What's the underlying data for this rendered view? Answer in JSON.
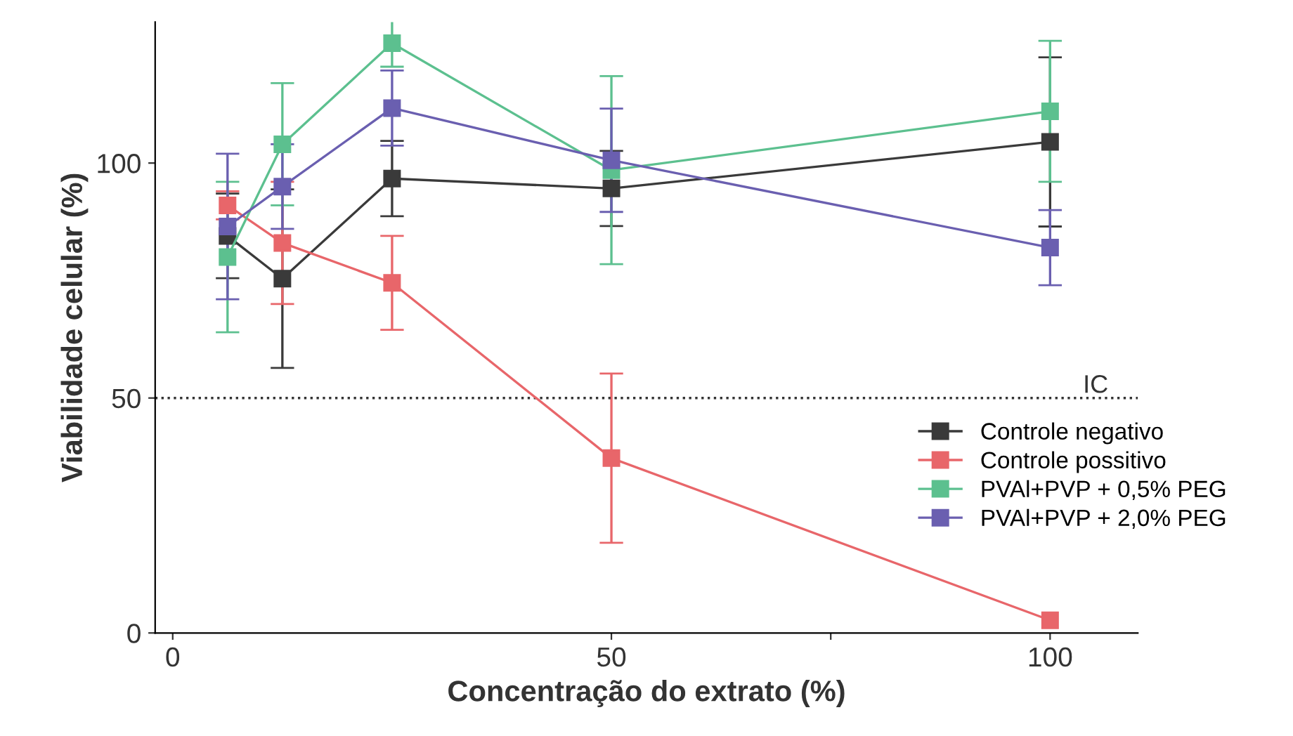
{
  "chart_data": {
    "type": "line",
    "xlabel": "Concentração do extrato (%)",
    "ylabel": "Viabilidade celular (%)",
    "x": [
      6.25,
      12.5,
      25,
      50,
      100
    ],
    "series": [
      {
        "name": "Controle negativo",
        "color": "#3a3a3a",
        "values": [
          84.5,
          75.4,
          96.7,
          94.6,
          104.5
        ],
        "errors": [
          9,
          19,
          8,
          8,
          18
        ]
      },
      {
        "name": "Controle possitivo",
        "color": "#e8666a",
        "values": [
          91,
          83,
          74.5,
          37.2,
          2.7
        ],
        "errors": [
          3,
          13,
          10,
          18,
          null
        ]
      },
      {
        "name": "PVAl+PVP + 0,5% PEG",
        "color": "#5cc08f",
        "values": [
          80,
          104,
          125.5,
          98.5,
          111
        ],
        "errors": [
          16,
          13,
          5,
          20,
          15
        ]
      },
      {
        "name": "PVAl+PVP + 2,0% PEG",
        "color": "#6a5fb0",
        "values": [
          86.5,
          95,
          111.7,
          100.6,
          82
        ],
        "errors": [
          15.5,
          9,
          8,
          11,
          8
        ]
      }
    ],
    "xlim": [
      -2,
      110
    ],
    "ylim": [
      0,
      130
    ],
    "xticks": [
      0,
      50,
      {
        "value": 75,
        "label": null
      },
      100
    ],
    "yticks": [
      0,
      50,
      100
    ],
    "ref_lines": [
      {
        "axis": "y",
        "value": 50,
        "label": "IC",
        "color": "#333333",
        "line_style": "dotted"
      }
    ],
    "marker": "square",
    "line_style": "solid",
    "grid": false,
    "legend": "bottom right"
  }
}
